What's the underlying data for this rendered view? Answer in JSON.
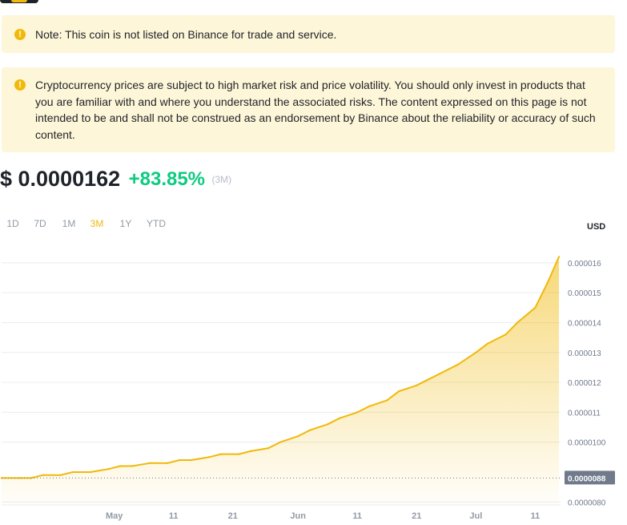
{
  "notices": [
    {
      "text": "Note: This coin is not listed on Binance for trade and service."
    },
    {
      "text": "Cryptocurrency prices are subject to high market risk and price volatility. You should only invest in products that you are familiar with and where you understand the associated risks. The content expressed on this page is not intended to be and shall not be construed as an endorsement by Binance about the reliability or accuracy of such content."
    }
  ],
  "price": {
    "value": "$ 0.0000162",
    "change": "+83.85%",
    "period": "(3M)"
  },
  "range_tabs": [
    {
      "label": "1D",
      "active": false
    },
    {
      "label": "7D",
      "active": false
    },
    {
      "label": "1M",
      "active": false
    },
    {
      "label": "3M",
      "active": true
    },
    {
      "label": "1Y",
      "active": false
    },
    {
      "label": "YTD",
      "active": false
    }
  ],
  "currency": "USD",
  "colors": {
    "accent": "#f0b90b",
    "positive": "#0ecb81",
    "notice_bg": "#fef6d8",
    "text": "#1e2329",
    "muted": "#929aa5"
  },
  "chart_data": {
    "type": "area",
    "xlabel": "",
    "ylabel": "",
    "x_tick_labels": [
      "May",
      "11",
      "21",
      "Jun",
      "11",
      "21",
      "Jul",
      "11"
    ],
    "x_tick_days": [
      19,
      29,
      39,
      50,
      60,
      70,
      80,
      90
    ],
    "y_tick_values": [
      8e-06,
      1e-05,
      1.1e-05,
      1.2e-05,
      1.3e-05,
      1.4e-05,
      1.5e-05,
      1.6e-05
    ],
    "y_tick_labels": [
      "0.0000080",
      "0.0000100",
      "0.000011",
      "0.000012",
      "0.000013",
      "0.000014",
      "0.000015",
      "0.000016"
    ],
    "ylim": [
      7.9e-06,
      1.68e-05
    ],
    "reference_line": {
      "value": 8.8e-06,
      "label": "0.0000088"
    },
    "grid": true,
    "axis_position": "right",
    "x_days": [
      0,
      3,
      5,
      7,
      10,
      12,
      15,
      18,
      20,
      22,
      25,
      28,
      30,
      32,
      35,
      37,
      40,
      42,
      45,
      47,
      50,
      52,
      55,
      57,
      60,
      62,
      65,
      67,
      70,
      72,
      75,
      77,
      80,
      82,
      85,
      87,
      90,
      92,
      94
    ],
    "values": [
      8.8e-06,
      8.8e-06,
      8.8e-06,
      8.9e-06,
      8.9e-06,
      9e-06,
      9e-06,
      9.1e-06,
      9.2e-06,
      9.2e-06,
      9.3e-06,
      9.3e-06,
      9.4e-06,
      9.4e-06,
      9.5e-06,
      9.6e-06,
      9.6e-06,
      9.7e-06,
      9.8e-06,
      1e-05,
      1.02e-05,
      1.04e-05,
      1.06e-05,
      1.08e-05,
      1.1e-05,
      1.12e-05,
      1.14e-05,
      1.17e-05,
      1.19e-05,
      1.21e-05,
      1.24e-05,
      1.26e-05,
      1.3e-05,
      1.33e-05,
      1.36e-05,
      1.4e-05,
      1.45e-05,
      1.53e-05,
      1.62e-05
    ]
  }
}
